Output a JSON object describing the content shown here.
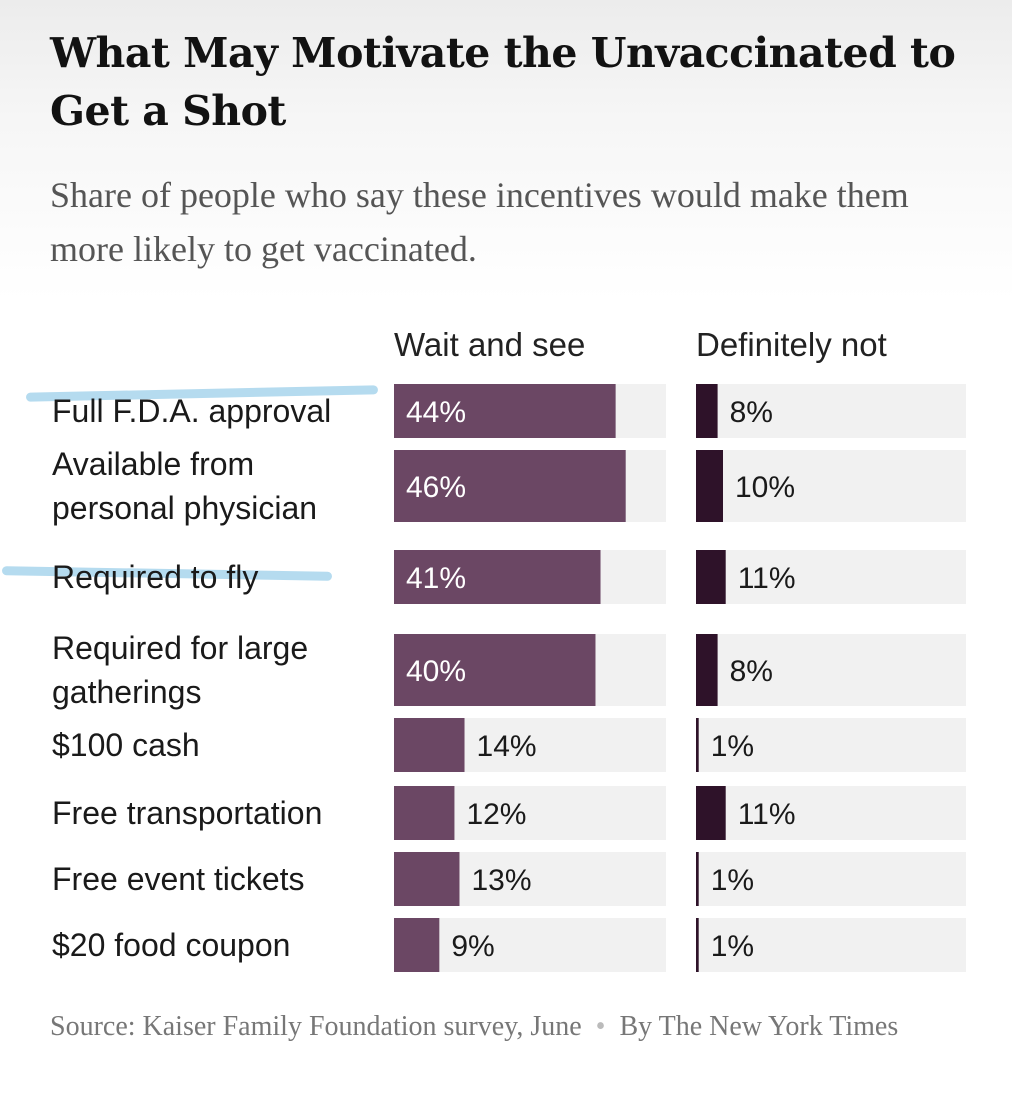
{
  "header": {
    "title": "What May Motivate the Unvaccinated to Get a Shot",
    "subtitle": "Share of people who say these incentives would make them more likely to get vaccinated."
  },
  "chart_data": {
    "type": "bar",
    "orientation": "horizontal",
    "title": "What May Motivate the Unvaccinated to Get a Shot",
    "subtitle": "Share of people who say these incentives would make them more likely to get vaccinated.",
    "categories": [
      [
        "Full F.D.A. approval"
      ],
      [
        "Available from",
        "personal physician"
      ],
      [
        "Required to fly"
      ],
      [
        "Required for large",
        "gatherings"
      ],
      [
        "$100 cash"
      ],
      [
        "Free transportation"
      ],
      [
        "Free event tickets"
      ],
      [
        "$20 food coupon"
      ]
    ],
    "series": [
      {
        "name": "Wait and see",
        "values": [
          44,
          46,
          41,
          40,
          14,
          12,
          13,
          9
        ],
        "labels": [
          "44%",
          "46%",
          "41%",
          "40%",
          "14%",
          "12%",
          "13%",
          "9%"
        ],
        "color": "#6b4764"
      },
      {
        "name": "Definitely not",
        "values": [
          8,
          10,
          11,
          8,
          1,
          11,
          1,
          1
        ],
        "labels": [
          "8%",
          "10%",
          "11%",
          "8%",
          "1%",
          "11%",
          "1%",
          "1%"
        ],
        "color": "#2e1229"
      }
    ],
    "xlim": [
      0,
      100
    ],
    "grid": false,
    "legend": "column-headers",
    "highlighted_rows": [
      0,
      2
    ],
    "track_color": "#f1f1f1"
  },
  "footer": {
    "source": "Source: Kaiser Family Foundation survey, June",
    "byline": "By The New York Times"
  }
}
